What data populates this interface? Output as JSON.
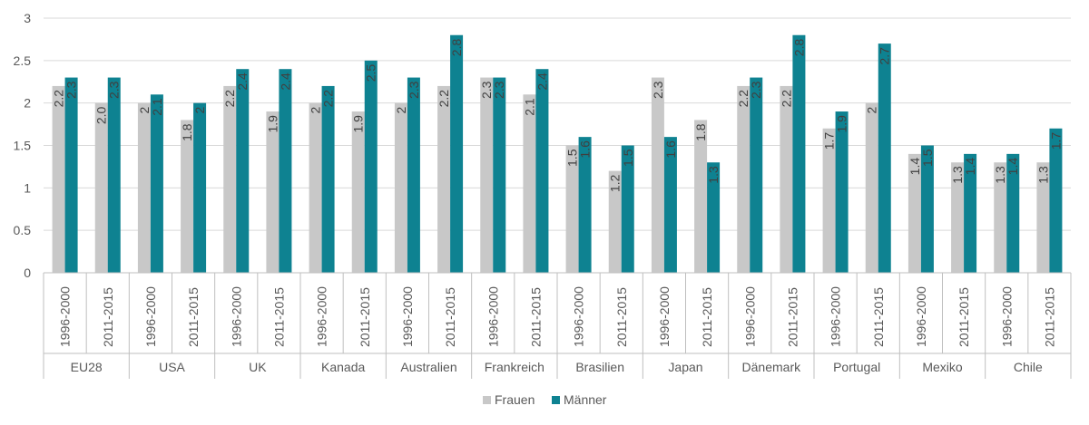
{
  "chart_data": {
    "type": "bar",
    "title": "",
    "xlabel": "",
    "ylabel": "",
    "ylim": [
      0,
      3
    ],
    "yticks": [
      "0",
      "0.5",
      "1",
      "1.5",
      "2",
      "2.5",
      "3"
    ],
    "grid": true,
    "legend_position": "bottom",
    "groups": [
      "EU28",
      "USA",
      "UK",
      "Kanada",
      "Australien",
      "Frankreich",
      "Brasilien",
      "Japan",
      "Dänemark",
      "Portugal",
      "Mexiko",
      "Chile"
    ],
    "periods": [
      "1996-2000",
      "2011-2015"
    ],
    "series": [
      {
        "name": "Frauen",
        "color": "#c8c8c8",
        "values": [
          2.2,
          2.0,
          2.0,
          1.8,
          2.2,
          1.9,
          2.0,
          1.9,
          2.0,
          2.2,
          2.3,
          2.1,
          1.5,
          1.2,
          2.3,
          1.8,
          2.2,
          2.2,
          1.7,
          2.0,
          1.4,
          1.3,
          1.3,
          1.3
        ],
        "labels": [
          "2.2",
          "2.0",
          "2",
          "1.8",
          "2.2",
          "1.9",
          "2",
          "1.9",
          "2",
          "2.2",
          "2.3",
          "2.1",
          "1.5",
          "1.2",
          "2.3",
          "1.8",
          "2.2",
          "2.2",
          "1.7",
          "2",
          "1.4",
          "1.3",
          "1.3",
          "1.3"
        ]
      },
      {
        "name": "Männer",
        "color": "#0e8291",
        "values": [
          2.3,
          2.3,
          2.1,
          2.0,
          2.4,
          2.4,
          2.2,
          2.5,
          2.3,
          2.8,
          2.3,
          2.4,
          1.6,
          1.5,
          1.6,
          1.3,
          2.3,
          2.8,
          1.9,
          2.7,
          1.5,
          1.4,
          1.4,
          1.7
        ],
        "labels": [
          "2.3",
          "2.3",
          "2.1",
          "2",
          "2.4",
          "2.4",
          "2.2",
          "2.5",
          "2.3",
          "2.8",
          "2.3",
          "2.4",
          "1.6",
          "1.5",
          "1.6",
          "1.3",
          "2.3",
          "2.8",
          "1.9",
          "2.7",
          "1.5",
          "1.4",
          "1.4",
          "1.7"
        ]
      }
    ]
  }
}
